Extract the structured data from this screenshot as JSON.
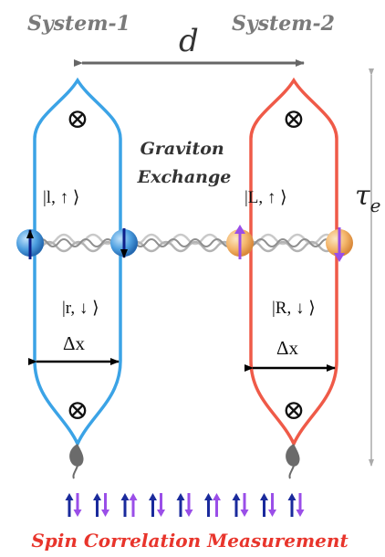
{
  "labels": {
    "system1": "System-1",
    "system2": "System-2",
    "distance": "d",
    "time": "τ",
    "time_sub": "e",
    "exchange_line1": "Graviton",
    "exchange_line2": "Exchange",
    "state_l_up": "|l, ↑ ⟩",
    "state_r_down": "|r, ↓ ⟩",
    "state_L_up": "|L, ↑ ⟩",
    "state_R_down": "|R, ↓ ⟩",
    "delta_x_left": "Δx",
    "delta_x_right": "Δx",
    "measurement": "Spin Correlation Measurement"
  },
  "icons": {
    "field_symbol": "⊗",
    "spin_pairs": [
      "↑↓",
      "↑↓",
      "↑↑",
      "↑↓",
      "↑↓",
      "↑↑",
      "↑↓",
      "↑↓",
      "↑↓"
    ]
  },
  "colors": {
    "system1": "#3ba3e6",
    "system2": "#ef5a48",
    "header_text": "#7a7a7a",
    "arrow_gray": "#666666",
    "measurement_text": "#e8352c",
    "spin_dark_blue": "#1a2a9c",
    "spin_purple": "#9a4ee8"
  }
}
